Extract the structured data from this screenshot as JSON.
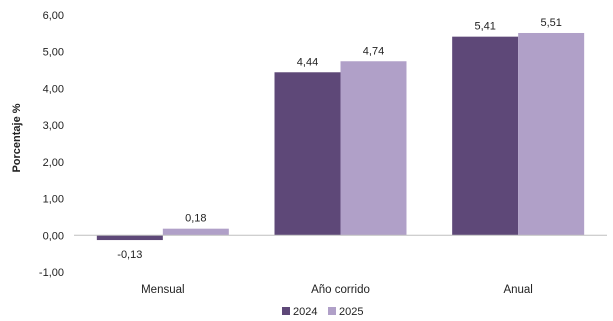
{
  "chart_data": {
    "type": "bar",
    "title": "",
    "xlabel": "",
    "ylabel": "Porcentaje %",
    "ylim": [
      -1,
      6
    ],
    "yticks": [
      -1,
      0,
      1,
      2,
      3,
      4,
      5,
      6
    ],
    "ytick_labels": [
      "-1,00",
      "0,00",
      "1,00",
      "2,00",
      "3,00",
      "4,00",
      "5,00",
      "6,00"
    ],
    "categories": [
      "Mensual",
      "Año corrido",
      "Anual"
    ],
    "series": [
      {
        "name": "2024",
        "color": "#5e4878",
        "values": [
          -0.13,
          4.44,
          5.41
        ],
        "labels": [
          "-0,13",
          "4,44",
          "5,41"
        ]
      },
      {
        "name": "2025",
        "color": "#b0a0c8",
        "values": [
          0.18,
          4.74,
          5.51
        ],
        "labels": [
          "0,18",
          "4,74",
          "5,51"
        ]
      }
    ],
    "grid": false,
    "legend": "bottom"
  }
}
